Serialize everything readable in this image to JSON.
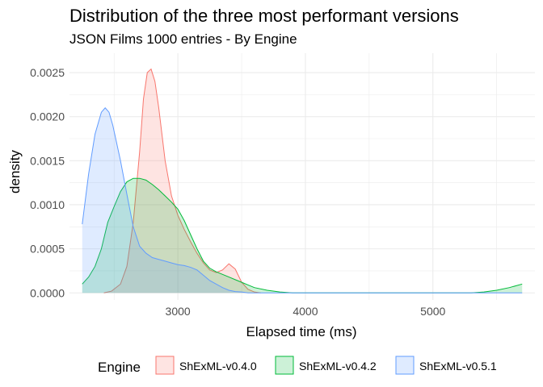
{
  "chart_data": {
    "type": "area",
    "title": "Distribution of the three most performant versions",
    "subtitle": "JSON Films 1000 entries - By Engine",
    "xlabel": "Elapsed time (ms)",
    "ylabel": "density",
    "xlim": [
      2150,
      5800
    ],
    "ylim": [
      -8e-05,
      0.00272
    ],
    "x_ticks": [
      3000,
      4000,
      5000
    ],
    "x_tick_labels": [
      "3000",
      "4000",
      "5000"
    ],
    "y_ticks": [
      0,
      0.0005,
      0.001,
      0.0015,
      0.002,
      0.0025
    ],
    "y_tick_labels": [
      "0.0000",
      "0.0005",
      "0.0010",
      "0.0015",
      "0.0020",
      "0.0025"
    ],
    "grid": true,
    "legend": {
      "title": "Engine",
      "position": "bottom",
      "entries": [
        "ShExML-v0.4.0",
        "ShExML-v0.4.2",
        "ShExML-v0.5.1"
      ]
    },
    "series": [
      {
        "name": "ShExML-v0.4.0",
        "color": "#F8766D",
        "x": [
          2420,
          2480,
          2550,
          2600,
          2650,
          2700,
          2730,
          2760,
          2790,
          2820,
          2850,
          2900,
          2950,
          3000,
          3050,
          3100,
          3150,
          3200,
          3250,
          3300,
          3350,
          3400,
          3450,
          3500,
          3550,
          3600,
          3650
        ],
        "y": [
          0,
          2e-05,
          0.0001,
          0.0003,
          0.0008,
          0.0016,
          0.0022,
          0.0025,
          0.00254,
          0.0024,
          0.0021,
          0.0015,
          0.0011,
          0.00088,
          0.00072,
          0.00058,
          0.00045,
          0.00034,
          0.00026,
          0.00023,
          0.00026,
          0.00033,
          0.00027,
          0.00012,
          4e-05,
          1e-05,
          0
        ]
      },
      {
        "name": "ShExML-v0.4.2",
        "color": "#00BA38",
        "x": [
          2250,
          2300,
          2350,
          2400,
          2450,
          2500,
          2550,
          2600,
          2650,
          2700,
          2750,
          2800,
          2850,
          2900,
          2950,
          3000,
          3050,
          3100,
          3150,
          3200,
          3250,
          3300,
          3350,
          3400,
          3450,
          3500,
          3550,
          3600,
          3700,
          3800,
          3900,
          4000,
          4500,
          5000,
          5300,
          5400,
          5500,
          5600,
          5700
        ],
        "y": [
          0.0001,
          0.00018,
          0.0003,
          0.0005,
          0.0008,
          0.00098,
          0.00115,
          0.00126,
          0.0013,
          0.0013,
          0.00128,
          0.00123,
          0.00117,
          0.0011,
          0.00103,
          0.00095,
          0.00082,
          0.00066,
          0.0005,
          0.00036,
          0.00028,
          0.00024,
          0.00021,
          0.00018,
          0.00015,
          0.00012,
          9e-05,
          6e-05,
          3e-05,
          1e-05,
          0,
          0,
          0,
          0,
          0,
          1e-05,
          3e-05,
          6e-05,
          0.0001
        ]
      },
      {
        "name": "ShExML-v0.5.1",
        "color": "#619CFF",
        "x": [
          2250,
          2300,
          2350,
          2400,
          2430,
          2460,
          2490,
          2520,
          2550,
          2600,
          2650,
          2700,
          2750,
          2800,
          2850,
          2900,
          2950,
          3000,
          3050,
          3100,
          3150,
          3200,
          3250,
          3300,
          3350,
          3400,
          3450,
          3500,
          3550,
          3600,
          3700,
          3800,
          4000,
          4500,
          5000,
          5500,
          5700
        ],
        "y": [
          0.00078,
          0.00135,
          0.0018,
          0.00205,
          0.0021,
          0.00205,
          0.0019,
          0.0017,
          0.0015,
          0.00112,
          0.00075,
          0.00053,
          0.00045,
          0.0004,
          0.00038,
          0.00036,
          0.00034,
          0.00032,
          0.00031,
          0.00029,
          0.00026,
          0.0002,
          0.00014,
          0.0001,
          6e-05,
          3e-05,
          1.5e-05,
          1e-05,
          0,
          0,
          0,
          0,
          0,
          0,
          0,
          0,
          0
        ]
      }
    ]
  }
}
